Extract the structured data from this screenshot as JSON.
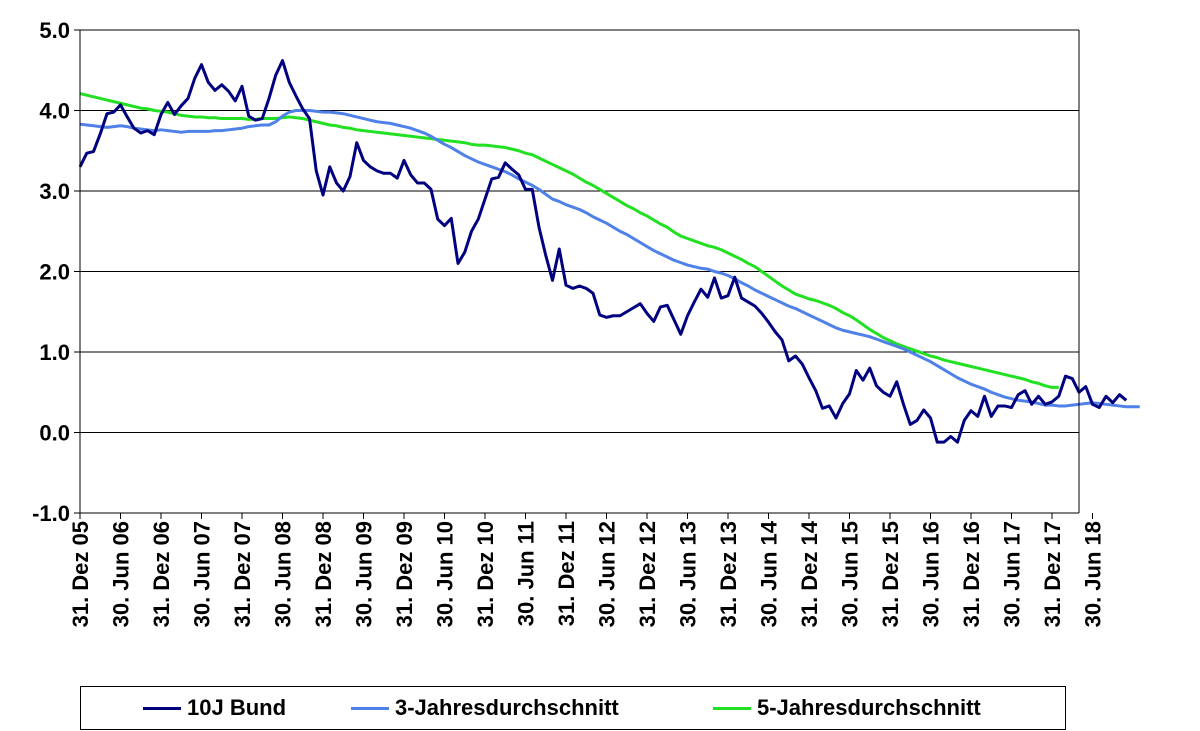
{
  "chart_data": {
    "type": "line",
    "title": "",
    "xlabel": "",
    "ylabel": "",
    "ylim": [
      -1.0,
      5.0
    ],
    "yticks": [
      "5.0",
      "4.0",
      "3.0",
      "2.0",
      "1.0",
      "0.0",
      "-1.0"
    ],
    "x_tick_labels": [
      "31. Dez 05",
      "30. Jun 06",
      "31. Dez 06",
      "30. Jun 07",
      "31. Dez 07",
      "30. Jun 08",
      "31. Dez 08",
      "30. Jun 09",
      "31. Dez 09",
      "30. Jun 10",
      "31. Dez 10",
      "30. Jun 11",
      "31. Dez 11",
      "30. Jun 12",
      "31. Dez 12",
      "30. Jun 13",
      "31. Dez 13",
      "30. Jun 14",
      "31. Dez 14",
      "30. Jun 15",
      "31. Dez 15",
      "30. Jun 16",
      "31. Dez 16",
      "30. Jun 17",
      "31. Dez 17",
      "30. Jun 18"
    ],
    "x_start": "2005-12-31",
    "grid": "horizontal",
    "legend_position": "bottom",
    "series": [
      {
        "name": "10J Bund",
        "color": "#000080",
        "values": [
          3.3,
          3.47,
          3.49,
          3.71,
          3.96,
          3.98,
          4.07,
          3.92,
          3.78,
          3.72,
          3.75,
          3.7,
          3.95,
          4.1,
          3.95,
          4.06,
          4.15,
          4.4,
          4.57,
          4.35,
          4.25,
          4.32,
          4.24,
          4.12,
          4.3,
          3.93,
          3.88,
          3.9,
          4.15,
          4.44,
          4.62,
          4.35,
          4.18,
          4.02,
          3.9,
          3.25,
          2.95,
          3.3,
          3.1,
          3.0,
          3.18,
          3.6,
          3.38,
          3.3,
          3.25,
          3.22,
          3.22,
          3.16,
          3.38,
          3.2,
          3.1,
          3.1,
          3.02,
          2.65,
          2.57,
          2.66,
          2.1,
          2.24,
          2.5,
          2.65,
          2.9,
          3.15,
          3.17,
          3.35,
          3.27,
          3.2,
          3.02,
          3.02,
          2.55,
          2.2,
          1.89,
          2.28,
          1.83,
          1.79,
          1.82,
          1.79,
          1.73,
          1.46,
          1.43,
          1.45,
          1.45,
          1.5,
          1.55,
          1.6,
          1.48,
          1.38,
          1.56,
          1.58,
          1.4,
          1.22,
          1.45,
          1.62,
          1.78,
          1.68,
          1.92,
          1.67,
          1.7,
          1.93,
          1.67,
          1.62,
          1.57,
          1.48,
          1.37,
          1.25,
          1.15,
          0.89,
          0.95,
          0.85,
          0.68,
          0.52,
          0.3,
          0.33,
          0.18,
          0.36,
          0.48,
          0.77,
          0.65,
          0.8,
          0.58,
          0.5,
          0.45,
          0.63,
          0.35,
          0.1,
          0.15,
          0.28,
          0.18,
          -0.12,
          -0.12,
          -0.05,
          -0.12,
          0.15,
          0.27,
          0.2,
          0.45,
          0.2,
          0.33,
          0.33,
          0.31,
          0.47,
          0.52,
          0.35,
          0.45,
          0.35,
          0.38,
          0.45,
          0.7,
          0.67,
          0.5,
          0.57,
          0.35,
          0.31,
          0.45,
          0.37,
          0.47,
          0.4
        ]
      },
      {
        "name": "3-Jahresdurchschnitt",
        "color": "#4f81e8",
        "values": [
          3.83,
          3.82,
          3.81,
          3.8,
          3.79,
          3.8,
          3.81,
          3.8,
          3.78,
          3.77,
          3.76,
          3.75,
          3.76,
          3.75,
          3.74,
          3.73,
          3.74,
          3.74,
          3.74,
          3.74,
          3.75,
          3.75,
          3.76,
          3.77,
          3.78,
          3.8,
          3.81,
          3.82,
          3.82,
          3.86,
          3.93,
          3.98,
          4.0,
          4.0,
          4.0,
          3.99,
          3.98,
          3.98,
          3.97,
          3.96,
          3.94,
          3.92,
          3.9,
          3.88,
          3.86,
          3.85,
          3.84,
          3.82,
          3.8,
          3.78,
          3.75,
          3.72,
          3.68,
          3.63,
          3.58,
          3.54,
          3.49,
          3.44,
          3.4,
          3.36,
          3.33,
          3.3,
          3.27,
          3.24,
          3.2,
          3.15,
          3.11,
          3.07,
          3.02,
          2.96,
          2.9,
          2.87,
          2.83,
          2.8,
          2.77,
          2.73,
          2.68,
          2.64,
          2.6,
          2.55,
          2.5,
          2.46,
          2.41,
          2.36,
          2.31,
          2.26,
          2.22,
          2.18,
          2.14,
          2.11,
          2.08,
          2.06,
          2.04,
          2.03,
          2.0,
          1.98,
          1.95,
          1.91,
          1.86,
          1.82,
          1.77,
          1.73,
          1.69,
          1.65,
          1.61,
          1.57,
          1.54,
          1.5,
          1.46,
          1.42,
          1.38,
          1.34,
          1.3,
          1.27,
          1.25,
          1.23,
          1.21,
          1.19,
          1.16,
          1.13,
          1.1,
          1.07,
          1.04,
          1.0,
          0.96,
          0.92,
          0.88,
          0.83,
          0.78,
          0.73,
          0.68,
          0.64,
          0.6,
          0.57,
          0.54,
          0.5,
          0.47,
          0.44,
          0.42,
          0.4,
          0.39,
          0.38,
          0.36,
          0.34,
          0.34,
          0.33,
          0.33,
          0.34,
          0.35,
          0.36,
          0.37,
          0.36,
          0.35,
          0.34,
          0.33,
          0.32,
          0.32,
          0.32
        ]
      },
      {
        "name": "5-Jahresdurchschnitt",
        "color": "#22e022",
        "values": [
          4.21,
          4.19,
          4.17,
          4.15,
          4.13,
          4.11,
          4.09,
          4.07,
          4.05,
          4.03,
          4.02,
          4.0,
          3.99,
          3.98,
          3.96,
          3.94,
          3.93,
          3.92,
          3.92,
          3.91,
          3.91,
          3.9,
          3.9,
          3.9,
          3.9,
          3.89,
          3.89,
          3.9,
          3.9,
          3.9,
          3.91,
          3.92,
          3.91,
          3.9,
          3.88,
          3.86,
          3.84,
          3.82,
          3.81,
          3.79,
          3.78,
          3.76,
          3.75,
          3.74,
          3.73,
          3.72,
          3.71,
          3.7,
          3.69,
          3.68,
          3.67,
          3.66,
          3.65,
          3.64,
          3.63,
          3.62,
          3.61,
          3.6,
          3.58,
          3.57,
          3.57,
          3.56,
          3.55,
          3.54,
          3.52,
          3.5,
          3.47,
          3.45,
          3.41,
          3.37,
          3.33,
          3.29,
          3.25,
          3.21,
          3.16,
          3.11,
          3.07,
          3.02,
          2.97,
          2.92,
          2.87,
          2.82,
          2.78,
          2.73,
          2.69,
          2.64,
          2.59,
          2.55,
          2.49,
          2.44,
          2.41,
          2.38,
          2.35,
          2.32,
          2.3,
          2.27,
          2.23,
          2.19,
          2.15,
          2.1,
          2.06,
          2.0,
          1.94,
          1.88,
          1.82,
          1.77,
          1.72,
          1.69,
          1.66,
          1.64,
          1.61,
          1.58,
          1.54,
          1.49,
          1.45,
          1.4,
          1.34,
          1.28,
          1.23,
          1.18,
          1.14,
          1.1,
          1.07,
          1.04,
          1.01,
          0.98,
          0.95,
          0.93,
          0.9,
          0.88,
          0.86,
          0.84,
          0.82,
          0.8,
          0.78,
          0.76,
          0.74,
          0.72,
          0.7,
          0.68,
          0.66,
          0.63,
          0.61,
          0.58,
          0.56,
          0.56
        ]
      }
    ]
  }
}
